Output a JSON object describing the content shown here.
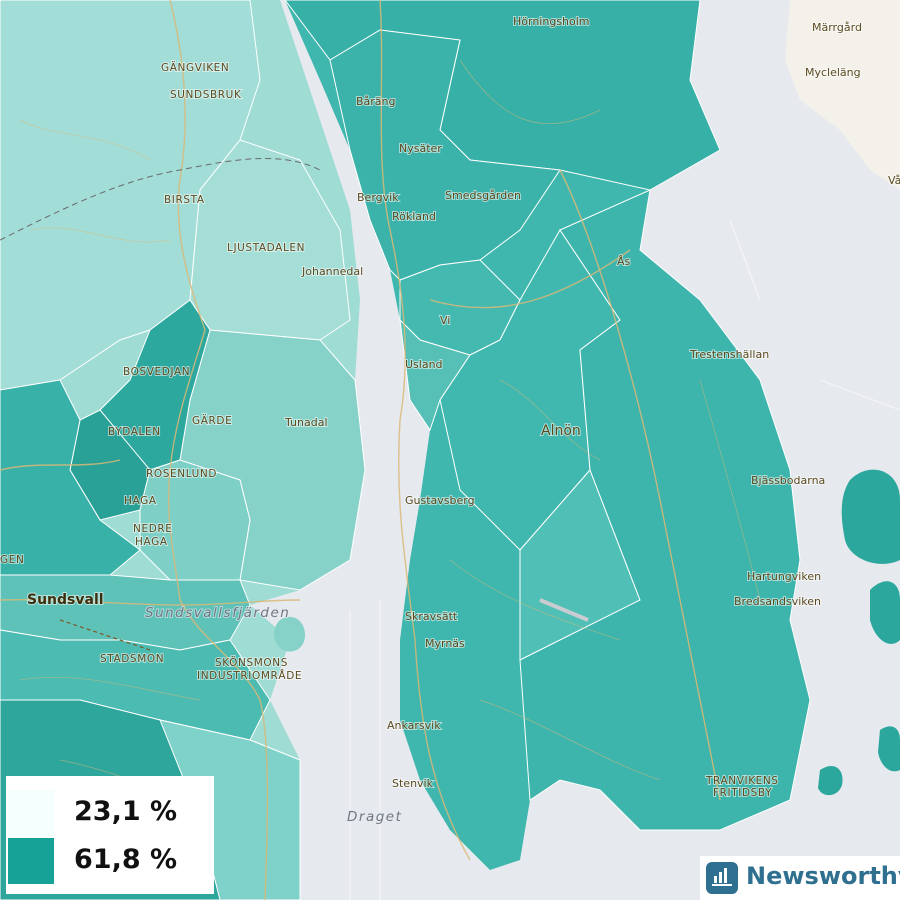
{
  "map": {
    "place_labels": [
      {
        "key": "horningsholm",
        "text": "Hörningsholm",
        "style": "normal"
      },
      {
        "key": "marrgard",
        "text": "Märrgård",
        "style": "normal"
      },
      {
        "key": "myclelang",
        "text": "Mycleläng",
        "style": "normal"
      },
      {
        "key": "va",
        "text": "Vå",
        "style": "normal"
      },
      {
        "key": "gangviken",
        "text": "GÄNGVIKEN",
        "style": "caps"
      },
      {
        "key": "sundsbruk",
        "text": "SUNDSBRUK",
        "style": "caps"
      },
      {
        "key": "barang",
        "text": "Båräng",
        "style": "normal"
      },
      {
        "key": "nysater",
        "text": "Nysäter",
        "style": "normal"
      },
      {
        "key": "bergvik",
        "text": "Bergvik",
        "style": "normal"
      },
      {
        "key": "smedsgarden",
        "text": "Smedsgården",
        "style": "normal"
      },
      {
        "key": "birsta",
        "text": "BIRSTA",
        "style": "caps"
      },
      {
        "key": "rokland",
        "text": "Rökland",
        "style": "normal"
      },
      {
        "key": "ljustadalen",
        "text": "LJUSTADALEN",
        "style": "caps"
      },
      {
        "key": "as",
        "text": "Ås",
        "style": "normal"
      },
      {
        "key": "johannedal",
        "text": "Johannedal",
        "style": "normal"
      },
      {
        "key": "vi",
        "text": "Vi",
        "style": "normal"
      },
      {
        "key": "trestenshallan",
        "text": "Trestenshällan",
        "style": "normal"
      },
      {
        "key": "usland",
        "text": "Usland",
        "style": "normal"
      },
      {
        "key": "bosvedjan",
        "text": "BOSVEDJAN",
        "style": "caps"
      },
      {
        "key": "garde",
        "text": "GÄRDE",
        "style": "caps"
      },
      {
        "key": "tunadal",
        "text": "Tunadal",
        "style": "normal"
      },
      {
        "key": "bydalen",
        "text": "BYDALEN",
        "style": "caps"
      },
      {
        "key": "alnon",
        "text": "Alnön",
        "style": "big"
      },
      {
        "key": "rosenlund",
        "text": "ROSENLUND",
        "style": "caps"
      },
      {
        "key": "bjassbodarna",
        "text": "Bjässbodarna",
        "style": "normal"
      },
      {
        "key": "haga",
        "text": "HAGA",
        "style": "caps"
      },
      {
        "key": "gustavsberg",
        "text": "Gustavsberg",
        "style": "normal"
      },
      {
        "key": "nedre",
        "text": "NEDRE",
        "style": "caps"
      },
      {
        "key": "haga2",
        "text": "HAGA",
        "style": "caps"
      },
      {
        "key": "gen",
        "text": "GEN",
        "style": "caps"
      },
      {
        "key": "hartungviken",
        "text": "Hartungviken",
        "style": "normal"
      },
      {
        "key": "sundsvall",
        "text": "Sundsvall",
        "style": "city"
      },
      {
        "key": "bredsandsviken",
        "text": "Bredsandsviken",
        "style": "normal"
      },
      {
        "key": "sundsvallsfjarden",
        "text": "Sundsvallsfjärden",
        "style": "water"
      },
      {
        "key": "skravsatt",
        "text": "Skravsätt",
        "style": "normal"
      },
      {
        "key": "myrnas",
        "text": "Myrnäs",
        "style": "normal"
      },
      {
        "key": "stadsmon",
        "text": "STADSMON",
        "style": "caps"
      },
      {
        "key": "skonsmons",
        "text": "SKÖNSMONS",
        "style": "caps"
      },
      {
        "key": "industriomrade",
        "text": "INDUSTRIOMRÅDE",
        "style": "caps"
      },
      {
        "key": "ankarsvik",
        "text": "Ankarsvik",
        "style": "normal"
      },
      {
        "key": "stenvik",
        "text": "Stenvik",
        "style": "normal"
      },
      {
        "key": "travikens",
        "text": "TRANVIKENS",
        "style": "caps"
      },
      {
        "key": "fritidsby",
        "text": "FRITIDSBY",
        "style": "caps"
      },
      {
        "key": "draget",
        "text": "Draget",
        "style": "water"
      }
    ]
  },
  "colors": {
    "water": "#e6e9ee",
    "land": "#f3f1ea",
    "teal_dark": "#2ba79e",
    "teal_mid": "#3fb7ae",
    "teal_light": "#7fd2c9",
    "teal_pale": "#a3ddd7",
    "road": "#d9b978"
  },
  "legend": {
    "items": [
      {
        "label": "23,1 %",
        "color": "#f5fffe"
      },
      {
        "label": "61,8 %",
        "color": "#17a297"
      }
    ]
  },
  "brand": {
    "name": "Newsworthy",
    "icon": "bar-chart-icon",
    "color": "#2f6f8f"
  }
}
